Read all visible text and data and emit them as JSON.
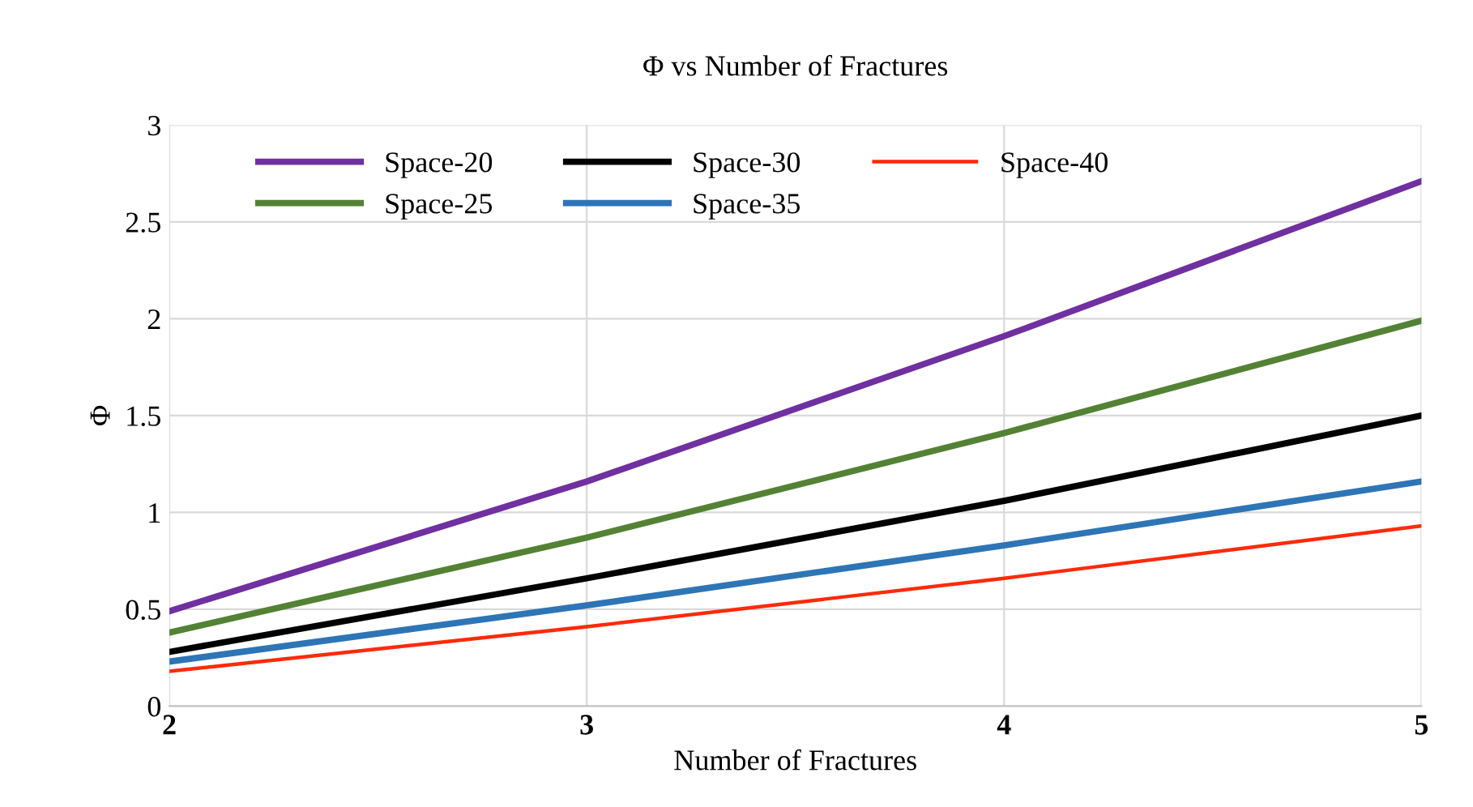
{
  "chart_data": {
    "type": "line",
    "title": "Φ vs Number of Fractures",
    "xlabel": "Number of Fractures",
    "ylabel": "Φ",
    "x": [
      2,
      3,
      4,
      5
    ],
    "series": [
      {
        "name": "Space-20",
        "color": "#7030a0",
        "values": [
          0.49,
          1.16,
          1.91,
          2.71
        ]
      },
      {
        "name": "Space-25",
        "color": "#548235",
        "values": [
          0.38,
          0.87,
          1.41,
          1.99
        ]
      },
      {
        "name": "Space-30",
        "color": "#000000",
        "values": [
          0.28,
          0.66,
          1.06,
          1.5
        ]
      },
      {
        "name": "Space-35",
        "color": "#2e75b6",
        "values": [
          0.23,
          0.52,
          0.83,
          1.16
        ]
      },
      {
        "name": "Space-40",
        "color": "#ff2a0a",
        "values": [
          0.18,
          0.41,
          0.66,
          0.93
        ]
      }
    ],
    "xlim": [
      2,
      5
    ],
    "xticks": [
      2,
      3,
      4,
      5
    ],
    "ylim": [
      0,
      3
    ],
    "yticks": [
      0,
      0.5,
      1,
      1.5,
      2,
      2.5,
      3
    ],
    "grid": true,
    "legend": "top left",
    "marker": "none",
    "line_style": "solid"
  }
}
